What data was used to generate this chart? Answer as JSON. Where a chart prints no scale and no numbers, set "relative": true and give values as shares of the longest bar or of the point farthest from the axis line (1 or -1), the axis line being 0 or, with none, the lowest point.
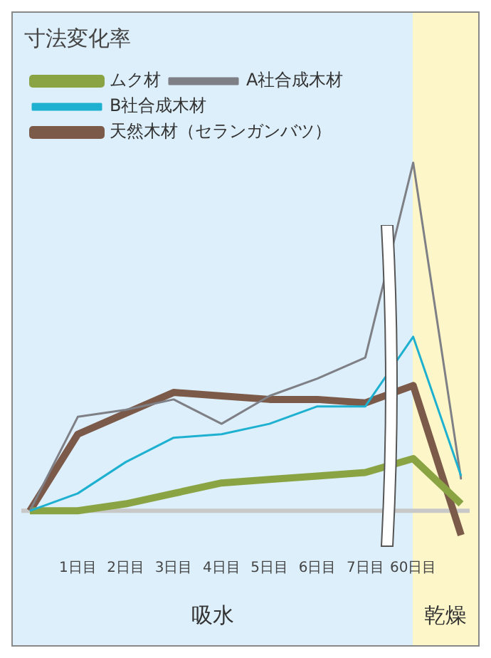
{
  "chart_data": {
    "type": "line",
    "title": "寸法変化率",
    "relative": true,
    "legend": "top left",
    "grid": false,
    "marker": "none",
    "categories": [
      null,
      "1日目",
      "2日目",
      "3日目",
      "4日目",
      "5日目",
      "6日目",
      "7日目",
      "60日目",
      null
    ],
    "series": [
      {
        "name": "ムク材",
        "color": "#8aa444",
        "values": [
          0,
          0,
          0.02,
          0.05,
          0.08,
          0.09,
          0.1,
          0.11,
          0.15,
          0.02
        ]
      },
      {
        "name": "A社合成木材",
        "color": "#7f7f86",
        "values": [
          0,
          0.27,
          0.29,
          0.32,
          0.25,
          0.33,
          0.38,
          0.44,
          1,
          0.09
        ]
      },
      {
        "name": "B社合成木材",
        "color": "#1eb0d0",
        "values": [
          0,
          0.05,
          0.14,
          0.21,
          0.22,
          0.25,
          0.3,
          0.3,
          0.5,
          0.1
        ]
      },
      {
        "name": "天然木材（セランガンバツ）",
        "color": "#7c5a4a",
        "values": [
          0,
          0.22,
          0.28,
          0.34,
          0.33,
          0.32,
          0.32,
          0.31,
          0.36,
          -0.07
        ]
      }
    ],
    "annotations": [
      "吸水",
      "乾燥"
    ]
  }
}
